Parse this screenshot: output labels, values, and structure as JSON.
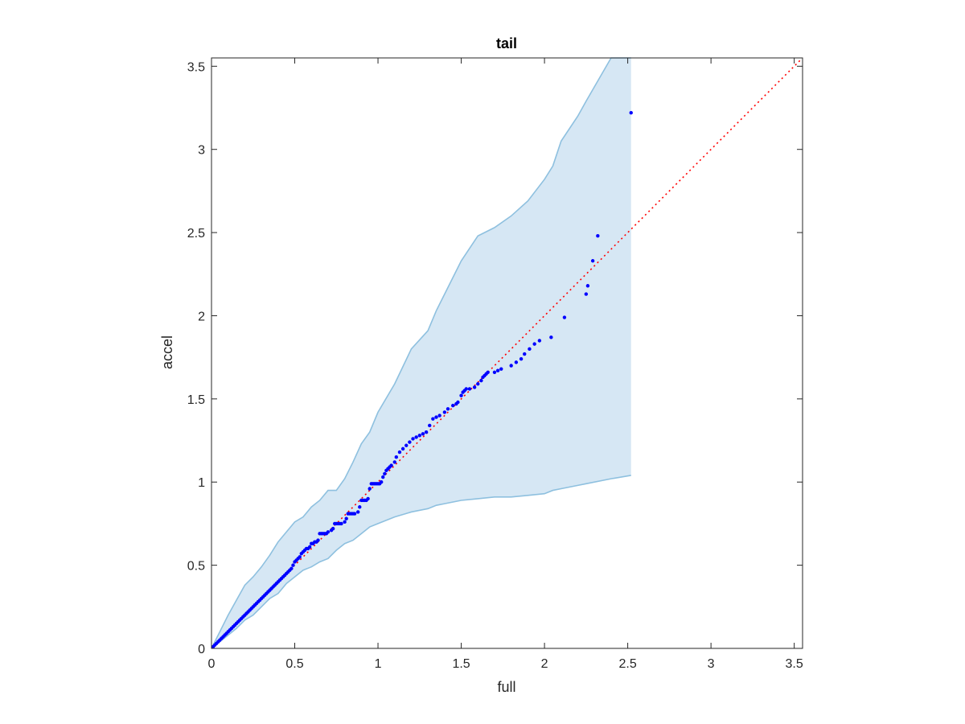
{
  "chart_data": {
    "type": "scatter",
    "title": "tail",
    "xlabel": "full",
    "ylabel": "accel",
    "xlim": [
      0,
      3.55
    ],
    "ylim": [
      0,
      3.55
    ],
    "x_ticks": [
      0,
      0.5,
      1,
      1.5,
      2,
      2.5,
      3,
      3.5
    ],
    "x_tick_labels": [
      "0",
      "0.5",
      "1",
      "1.5",
      "2",
      "2.5",
      "3",
      "3.5"
    ],
    "y_ticks": [
      0,
      0.5,
      1,
      1.5,
      2,
      2.5,
      3,
      3.5
    ],
    "y_tick_labels": [
      "0",
      "0.5",
      "1",
      "1.5",
      "2",
      "2.5",
      "3",
      "3.5"
    ],
    "grid": false,
    "colors": {
      "band_fill": "#d6e7f4",
      "band_edge": "#8ec0df",
      "points": "#0000ff",
      "reference_line": "#ff0000",
      "axes": "#262626"
    },
    "reference_line": {
      "from": [
        0,
        0
      ],
      "to": [
        3.55,
        3.55
      ],
      "style": "dotted"
    },
    "band": {
      "x": [
        0,
        0.05,
        0.1,
        0.15,
        0.2,
        0.25,
        0.3,
        0.35,
        0.4,
        0.45,
        0.5,
        0.55,
        0.6,
        0.65,
        0.7,
        0.75,
        0.8,
        0.85,
        0.9,
        0.95,
        1.0,
        1.1,
        1.2,
        1.3,
        1.35,
        1.4,
        1.5,
        1.6,
        1.7,
        1.8,
        1.9,
        2.0,
        2.05,
        2.1,
        2.2,
        2.25,
        2.4,
        2.52
      ],
      "upper": [
        0,
        0.1,
        0.2,
        0.29,
        0.38,
        0.43,
        0.49,
        0.56,
        0.64,
        0.7,
        0.76,
        0.79,
        0.85,
        0.89,
        0.95,
        0.95,
        1.02,
        1.12,
        1.23,
        1.3,
        1.42,
        1.59,
        1.8,
        1.91,
        2.03,
        2.13,
        2.33,
        2.48,
        2.53,
        2.6,
        2.69,
        2.82,
        2.9,
        3.05,
        3.2,
        3.29,
        3.55,
        3.55
      ],
      "lower": [
        0,
        0.04,
        0.08,
        0.12,
        0.17,
        0.2,
        0.25,
        0.3,
        0.33,
        0.39,
        0.43,
        0.47,
        0.49,
        0.52,
        0.54,
        0.59,
        0.63,
        0.65,
        0.69,
        0.73,
        0.75,
        0.79,
        0.82,
        0.84,
        0.86,
        0.87,
        0.89,
        0.9,
        0.91,
        0.91,
        0.92,
        0.93,
        0.95,
        0.96,
        0.98,
        0.99,
        1.02,
        1.04
      ]
    },
    "points": [
      [
        0.01,
        0.01
      ],
      [
        0.02,
        0.02
      ],
      [
        0.03,
        0.03
      ],
      [
        0.04,
        0.04
      ],
      [
        0.05,
        0.05
      ],
      [
        0.06,
        0.06
      ],
      [
        0.07,
        0.07
      ],
      [
        0.08,
        0.08
      ],
      [
        0.09,
        0.09
      ],
      [
        0.1,
        0.1
      ],
      [
        0.11,
        0.11
      ],
      [
        0.12,
        0.12
      ],
      [
        0.13,
        0.13
      ],
      [
        0.14,
        0.14
      ],
      [
        0.15,
        0.15
      ],
      [
        0.16,
        0.16
      ],
      [
        0.17,
        0.17
      ],
      [
        0.18,
        0.18
      ],
      [
        0.19,
        0.19
      ],
      [
        0.2,
        0.2
      ],
      [
        0.21,
        0.21
      ],
      [
        0.22,
        0.22
      ],
      [
        0.23,
        0.23
      ],
      [
        0.24,
        0.24
      ],
      [
        0.25,
        0.25
      ],
      [
        0.26,
        0.26
      ],
      [
        0.27,
        0.27
      ],
      [
        0.28,
        0.28
      ],
      [
        0.29,
        0.29
      ],
      [
        0.3,
        0.3
      ],
      [
        0.31,
        0.31
      ],
      [
        0.32,
        0.32
      ],
      [
        0.33,
        0.33
      ],
      [
        0.34,
        0.34
      ],
      [
        0.35,
        0.35
      ],
      [
        0.36,
        0.36
      ],
      [
        0.37,
        0.37
      ],
      [
        0.38,
        0.38
      ],
      [
        0.39,
        0.39
      ],
      [
        0.4,
        0.4
      ],
      [
        0.41,
        0.41
      ],
      [
        0.42,
        0.42
      ],
      [
        0.43,
        0.43
      ],
      [
        0.44,
        0.44
      ],
      [
        0.45,
        0.45
      ],
      [
        0.46,
        0.46
      ],
      [
        0.47,
        0.47
      ],
      [
        0.48,
        0.48
      ],
      [
        0.49,
        0.5
      ],
      [
        0.5,
        0.52
      ],
      [
        0.51,
        0.53
      ],
      [
        0.52,
        0.54
      ],
      [
        0.53,
        0.55
      ],
      [
        0.54,
        0.57
      ],
      [
        0.55,
        0.58
      ],
      [
        0.56,
        0.59
      ],
      [
        0.57,
        0.6
      ],
      [
        0.58,
        0.6
      ],
      [
        0.59,
        0.61
      ],
      [
        0.6,
        0.63
      ],
      [
        0.61,
        0.63
      ],
      [
        0.62,
        0.64
      ],
      [
        0.63,
        0.64
      ],
      [
        0.64,
        0.65
      ],
      [
        0.65,
        0.69
      ],
      [
        0.66,
        0.69
      ],
      [
        0.67,
        0.69
      ],
      [
        0.68,
        0.69
      ],
      [
        0.69,
        0.69
      ],
      [
        0.7,
        0.7
      ],
      [
        0.72,
        0.71
      ],
      [
        0.73,
        0.72
      ],
      [
        0.74,
        0.75
      ],
      [
        0.75,
        0.75
      ],
      [
        0.76,
        0.75
      ],
      [
        0.77,
        0.75
      ],
      [
        0.78,
        0.75
      ],
      [
        0.8,
        0.76
      ],
      [
        0.81,
        0.78
      ],
      [
        0.82,
        0.81
      ],
      [
        0.83,
        0.81
      ],
      [
        0.84,
        0.81
      ],
      [
        0.85,
        0.81
      ],
      [
        0.86,
        0.81
      ],
      [
        0.88,
        0.82
      ],
      [
        0.89,
        0.85
      ],
      [
        0.9,
        0.89
      ],
      [
        0.91,
        0.89
      ],
      [
        0.92,
        0.89
      ],
      [
        0.93,
        0.89
      ],
      [
        0.94,
        0.9
      ],
      [
        0.95,
        0.96
      ],
      [
        0.96,
        0.99
      ],
      [
        0.97,
        0.99
      ],
      [
        0.98,
        0.99
      ],
      [
        0.99,
        0.99
      ],
      [
        1.0,
        0.99
      ],
      [
        1.01,
        0.99
      ],
      [
        1.02,
        1.0
      ],
      [
        1.03,
        1.03
      ],
      [
        1.04,
        1.05
      ],
      [
        1.05,
        1.07
      ],
      [
        1.06,
        1.08
      ],
      [
        1.07,
        1.09
      ],
      [
        1.08,
        1.1
      ],
      [
        1.1,
        1.12
      ],
      [
        1.11,
        1.15
      ],
      [
        1.13,
        1.18
      ],
      [
        1.15,
        1.2
      ],
      [
        1.17,
        1.22
      ],
      [
        1.19,
        1.24
      ],
      [
        1.21,
        1.26
      ],
      [
        1.23,
        1.27
      ],
      [
        1.25,
        1.28
      ],
      [
        1.27,
        1.29
      ],
      [
        1.29,
        1.3
      ],
      [
        1.31,
        1.34
      ],
      [
        1.33,
        1.38
      ],
      [
        1.35,
        1.39
      ],
      [
        1.37,
        1.4
      ],
      [
        1.4,
        1.42
      ],
      [
        1.42,
        1.44
      ],
      [
        1.45,
        1.46
      ],
      [
        1.47,
        1.47
      ],
      [
        1.48,
        1.48
      ],
      [
        1.5,
        1.52
      ],
      [
        1.51,
        1.54
      ],
      [
        1.52,
        1.55
      ],
      [
        1.53,
        1.56
      ],
      [
        1.55,
        1.56
      ],
      [
        1.58,
        1.57
      ],
      [
        1.6,
        1.59
      ],
      [
        1.62,
        1.61
      ],
      [
        1.63,
        1.63
      ],
      [
        1.64,
        1.64
      ],
      [
        1.65,
        1.65
      ],
      [
        1.66,
        1.66
      ],
      [
        1.7,
        1.66
      ],
      [
        1.72,
        1.67
      ],
      [
        1.74,
        1.68
      ],
      [
        1.8,
        1.7
      ],
      [
        1.83,
        1.72
      ],
      [
        1.86,
        1.74
      ],
      [
        1.88,
        1.77
      ],
      [
        1.91,
        1.8
      ],
      [
        1.94,
        1.83
      ],
      [
        1.97,
        1.85
      ],
      [
        2.04,
        1.87
      ],
      [
        2.12,
        1.99
      ],
      [
        2.25,
        2.13
      ],
      [
        2.26,
        2.18
      ],
      [
        2.29,
        2.33
      ],
      [
        2.32,
        2.48
      ],
      [
        2.52,
        3.22
      ]
    ]
  }
}
